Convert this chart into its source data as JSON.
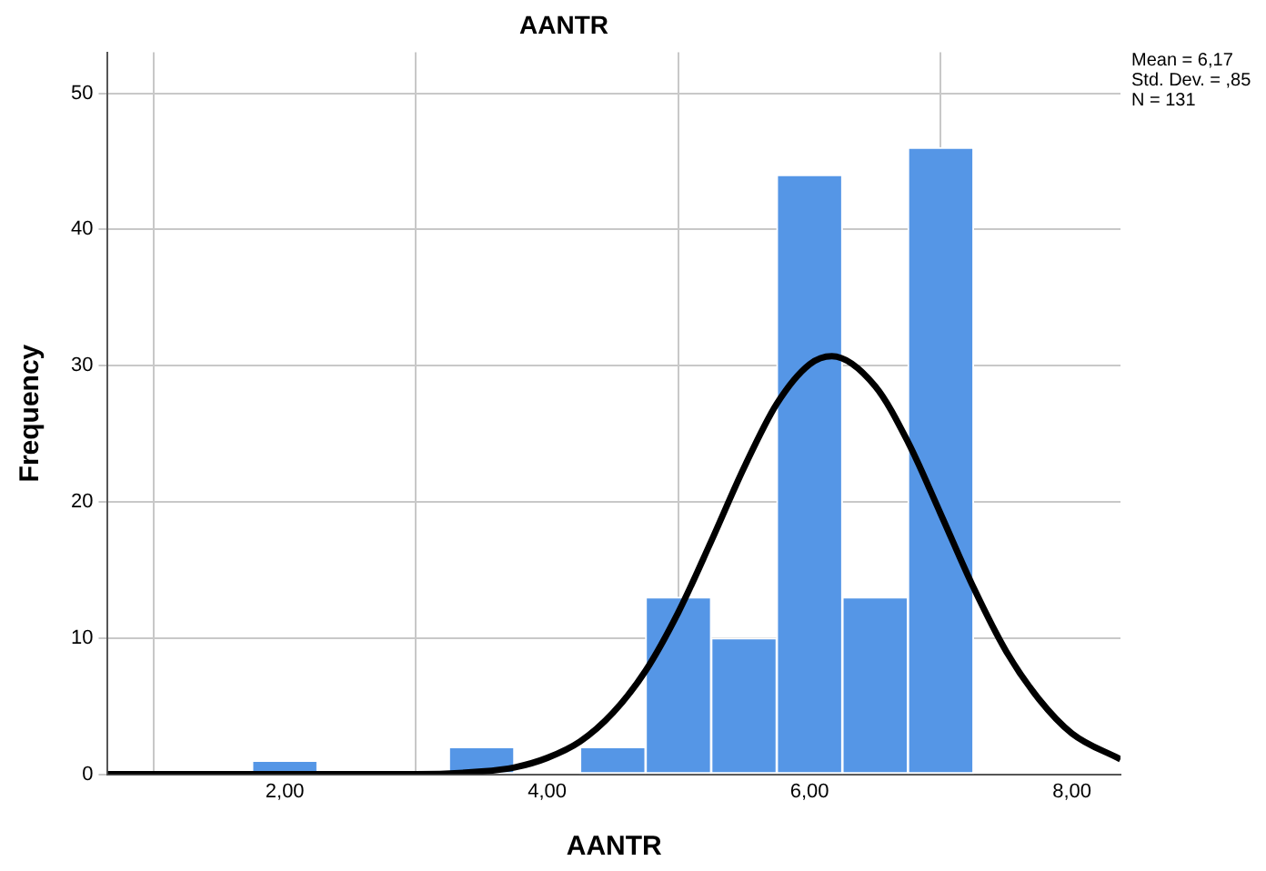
{
  "chart_data": {
    "type": "histogram",
    "title": "AANTR",
    "xlabel": "AANTR",
    "ylabel": "Frequency",
    "bins": [
      1.75,
      2.25,
      2.75,
      3.25,
      3.75,
      4.25,
      4.75,
      5.25,
      5.75,
      6.25,
      6.75,
      7.25
    ],
    "values": [
      1,
      0,
      0,
      2,
      0,
      2,
      13,
      10,
      44,
      13,
      46
    ],
    "color": "#5596e6",
    "series": [
      {
        "type": "line",
        "color": "#000000",
        "x": [
          0.65,
          2,
          3,
          3.5,
          3.75,
          4,
          4.25,
          4.5,
          4.75,
          5,
          5.25,
          5.5,
          5.75,
          6,
          6.17,
          6.5,
          6.75,
          7,
          7.25,
          7.5,
          7.75,
          8,
          8.37
        ],
        "values": [
          0,
          0,
          0,
          0.2,
          0.5,
          1.2,
          2.4,
          4.5,
          7.6,
          11.9,
          17.1,
          22.5,
          27.2,
          30.1,
          30.7,
          28.5,
          24.4,
          19.1,
          13.7,
          9,
          5.5,
          3,
          1.1
        ]
      }
    ],
    "xlim": [
      0.65,
      8.37
    ],
    "xticks": [
      {
        "value": 2,
        "label": "2,00"
      },
      {
        "value": 4,
        "label": "4,00"
      },
      {
        "value": 6,
        "label": "6,00"
      },
      {
        "value": 8,
        "label": "8,00"
      }
    ],
    "ylim": [
      0,
      53
    ],
    "yticks": [
      0,
      10,
      20,
      30,
      40,
      50
    ],
    "grid": true,
    "legend": false,
    "marker": "none",
    "line_style": "solid",
    "annotations": [
      "Mean = 6,17",
      "Std. Dev. = ,85",
      "N = 131"
    ]
  }
}
